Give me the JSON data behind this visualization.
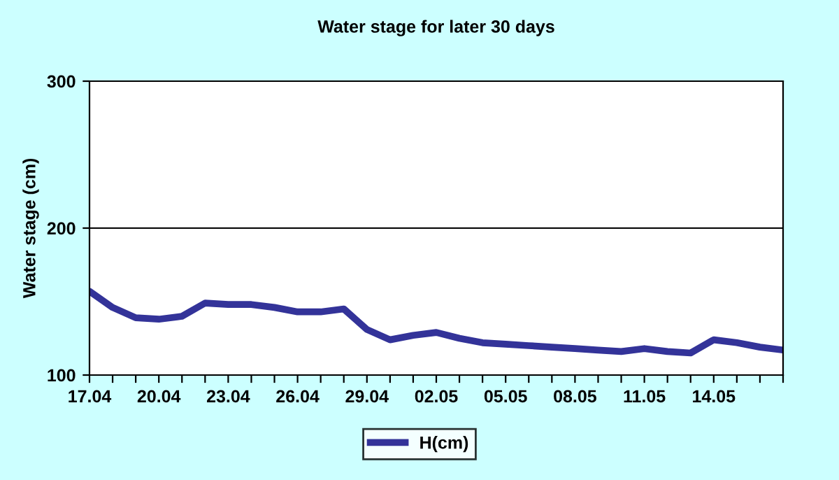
{
  "chart_data": {
    "type": "line",
    "title": "Water stage for later 30 days",
    "ylabel": "Water stage (cm)",
    "categories": [
      "17.04",
      null,
      null,
      "20.04",
      null,
      null,
      "23.04",
      null,
      null,
      "26.04",
      null,
      null,
      "29.04",
      null,
      null,
      "02.05",
      null,
      null,
      "05.05",
      null,
      null,
      "08.05",
      null,
      null,
      "11.05",
      null,
      null,
      "14.05",
      null,
      null,
      null
    ],
    "series": [
      {
        "name": "H(cm)",
        "color": "#333399",
        "values": [
          157,
          146,
          139,
          138,
          140,
          149,
          148,
          148,
          146,
          143,
          143,
          145,
          131,
          124,
          127,
          129,
          125,
          122,
          121,
          120,
          119,
          118,
          117,
          116,
          118,
          116,
          115,
          124,
          122,
          119,
          117
        ]
      }
    ],
    "ylim": [
      100,
      300
    ],
    "yticks": [
      100,
      200,
      300
    ],
    "grid": "y",
    "legend": "bottom",
    "marker": "none",
    "line_style": "solid"
  }
}
